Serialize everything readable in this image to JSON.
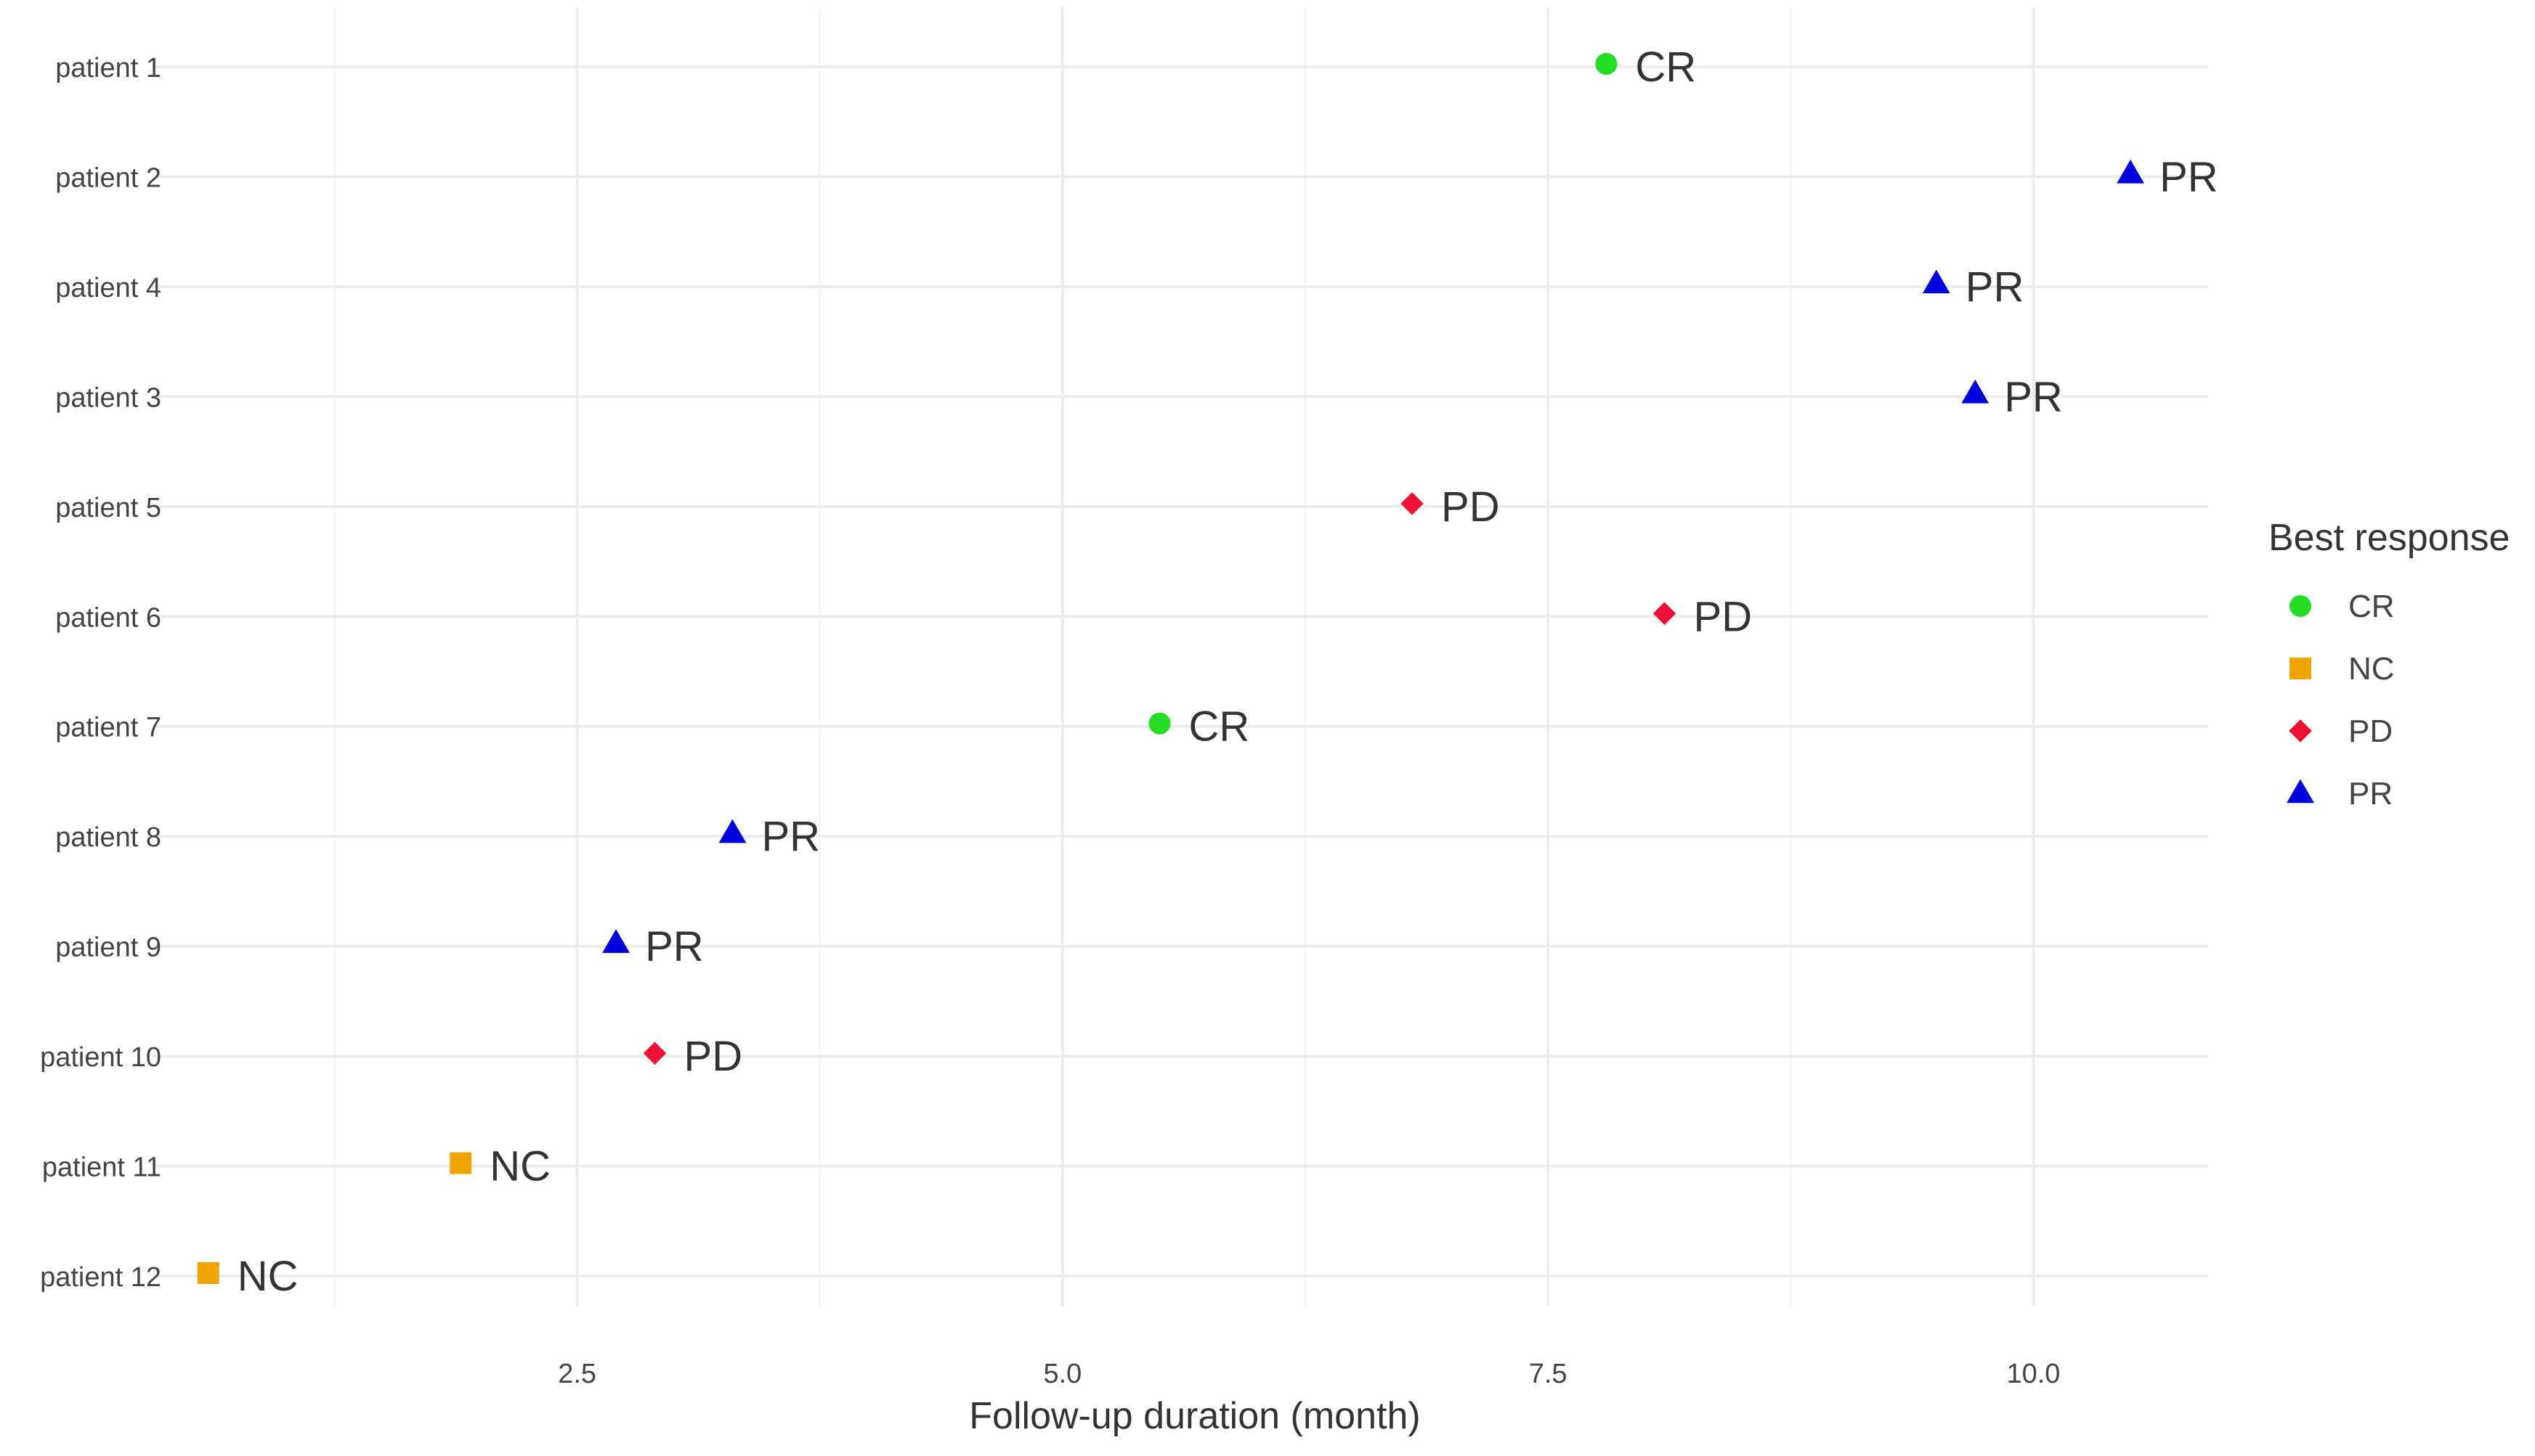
{
  "chart_data": {
    "type": "scatter",
    "title": "",
    "xlabel": "Follow-up duration (month)",
    "ylabel": "",
    "xlim": [
      0,
      11
    ],
    "x_ticks": [
      "2.5",
      "5.0",
      "7.5",
      "10.0"
    ],
    "x_tick_values": [
      2.5,
      5.0,
      7.5,
      10.0
    ],
    "grid": true,
    "legend": {
      "title": "Best response",
      "position": "right",
      "entries": [
        {
          "label": "CR",
          "color": "#22dd22",
          "shape": "circle"
        },
        {
          "label": "NC",
          "color": "#f0a500",
          "shape": "square"
        },
        {
          "label": "PD",
          "color": "#ee1133",
          "shape": "diamond"
        },
        {
          "label": "PR",
          "color": "#0000dd",
          "shape": "triangle"
        }
      ]
    },
    "points": [
      {
        "patient": "patient 1",
        "x": 7.8,
        "response": "CR"
      },
      {
        "patient": "patient 2",
        "x": 10.5,
        "response": "PR"
      },
      {
        "patient": "patient 4",
        "x": 9.5,
        "response": "PR"
      },
      {
        "patient": "patient 3",
        "x": 9.7,
        "response": "PR"
      },
      {
        "patient": "patient 5",
        "x": 6.8,
        "response": "PD"
      },
      {
        "patient": "patient 6",
        "x": 8.1,
        "response": "PD"
      },
      {
        "patient": "patient 7",
        "x": 5.5,
        "response": "CR"
      },
      {
        "patient": "patient 8",
        "x": 3.3,
        "response": "PR"
      },
      {
        "patient": "patient 9",
        "x": 2.7,
        "response": "PR"
      },
      {
        "patient": "patient 10",
        "x": 2.9,
        "response": "PD"
      },
      {
        "patient": "patient 11",
        "x": 1.9,
        "response": "NC"
      },
      {
        "patient": "patient 12",
        "x": 0.6,
        "response": "NC"
      }
    ]
  }
}
